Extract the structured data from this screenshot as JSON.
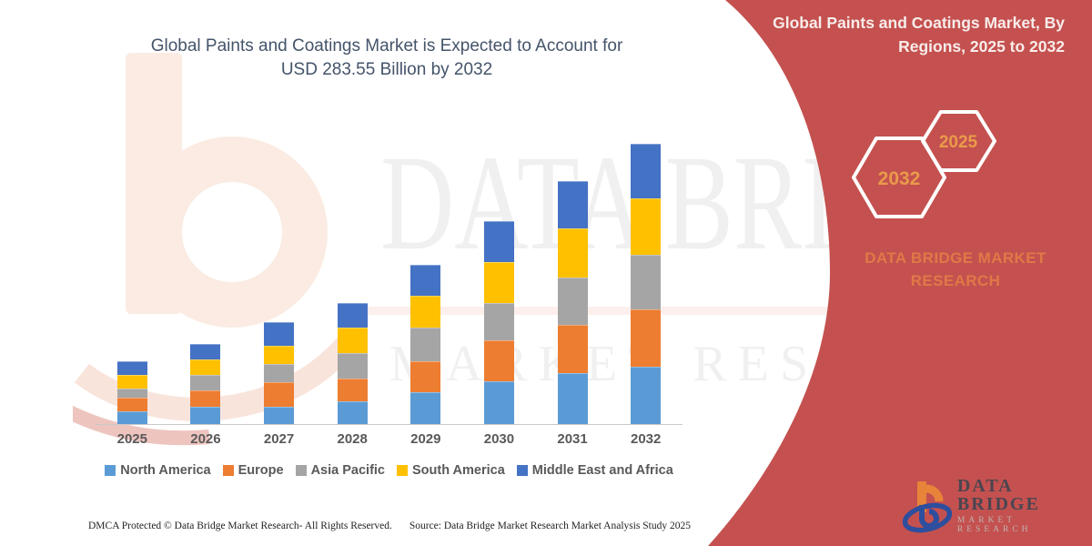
{
  "title": {
    "line1": "Global Paints and Coatings Market is Expected to Account for",
    "line2": "USD 283.55 Billion by 2032",
    "color": "#44546A"
  },
  "panel": {
    "header": "Global Paints and Coatings Market, By Regions, 2025 to 2032",
    "background_color": "#C4514F",
    "hex_back_year": "2032",
    "hex_front_year": "2025",
    "year_color": "#E99A4B",
    "brand_line1": "DATA BRIDGE MARKET",
    "brand_line2": "RESEARCH",
    "brand_color": "#E07847"
  },
  "logo": {
    "name": "DATA BRIDGE",
    "subtitle": "MARKET RESEARCH",
    "mark_orange": "#E8833A",
    "mark_blue": "#2E4E9E"
  },
  "watermark": {
    "line1": "DATA BRIDGE",
    "line2": "MARKET RESEARCH"
  },
  "footer": {
    "left": "DMCA Protected © Data Bridge Market Research- All Rights Reserved.",
    "right": "Source: Data Bridge Market Research Market Analysis Study 2025"
  },
  "chart_data": {
    "type": "bar",
    "stacked": true,
    "title": "Global Paints and Coatings Market is Expected to Account for USD 283.55 Billion by 2032",
    "unit": "USD Billion",
    "categories": [
      "2025",
      "2026",
      "2027",
      "2028",
      "2029",
      "2030",
      "2031",
      "2032"
    ],
    "series": [
      {
        "name": "North America",
        "color": "#5B9BD5",
        "values": [
          13.1,
          17.7,
          17.7,
          22.6,
          32.7,
          43.4,
          51.9,
          57.9
        ]
      },
      {
        "name": "Europe",
        "color": "#ED7D31",
        "values": [
          13.7,
          16.8,
          24.4,
          23.8,
          31.1,
          41.2,
          48.8,
          58.0
        ]
      },
      {
        "name": "Asia Pacific",
        "color": "#A5A5A5",
        "values": [
          9.1,
          15.2,
          18.3,
          25.0,
          33.5,
          38.1,
          47.9,
          54.9
        ]
      },
      {
        "name": "South America",
        "color": "#FFC000",
        "values": [
          13.7,
          15.3,
          18.9,
          25.9,
          32.9,
          41.2,
          49.0,
          57.9
        ]
      },
      {
        "name": "Middle East and Africa",
        "color": "#4472C4",
        "values": [
          13.7,
          16.2,
          23.8,
          24.7,
          30.6,
          41.2,
          47.9,
          54.9
        ]
      }
    ],
    "totals": [
      63.3,
      81.2,
      103.1,
      122.0,
      160.8,
      205.1,
      245.5,
      283.6
    ],
    "xlabel": "",
    "ylabel": "",
    "ylim": [
      0,
      300
    ],
    "grid": false,
    "legend_position": "bottom"
  }
}
